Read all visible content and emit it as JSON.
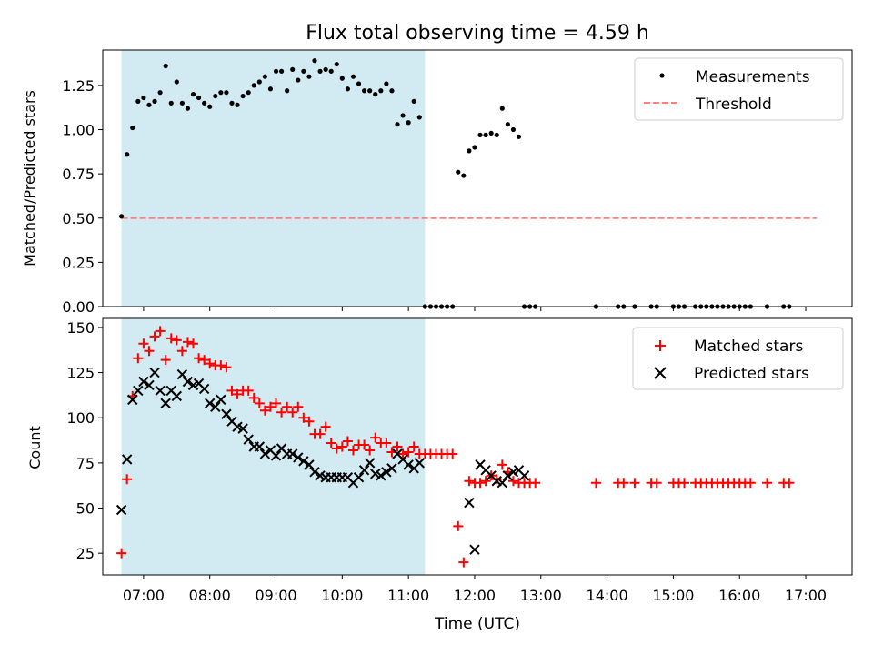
{
  "figure": {
    "title": "Flux total observing time = 4.59 h",
    "xlabel": "Time (UTC)"
  },
  "colors": {
    "shade": "#add8e6",
    "measurement": "#000000",
    "threshold": "#ff7f7f",
    "matched": "#ff0000",
    "predicted": "#000000"
  },
  "chart_data": [
    {
      "type": "scatter",
      "title": "Flux total observing time = 4.59 h",
      "xlabel": "",
      "ylabel": "Matched/Predicted stars",
      "xlim": [
        "06:23",
        "17:42"
      ],
      "ylim": [
        0,
        1.45
      ],
      "yticks": [
        0.0,
        0.25,
        0.5,
        0.75,
        1.0,
        1.25
      ],
      "ytick_labels": [
        "0.00",
        "0.25",
        "0.50",
        "0.75",
        "1.00",
        "1.25"
      ],
      "shaded_span": [
        "06:40",
        "11:15"
      ],
      "legend": [
        "Measurements",
        "Threshold"
      ],
      "legend_position": "upper right",
      "series": [
        {
          "name": "Measurements",
          "marker": "dot",
          "x": [
            "06:40",
            "06:45",
            "06:50",
            "06:55",
            "07:00",
            "07:05",
            "07:10",
            "07:15",
            "07:20",
            "07:25",
            "07:30",
            "07:35",
            "07:40",
            "07:45",
            "07:50",
            "07:55",
            "08:00",
            "08:05",
            "08:10",
            "08:15",
            "08:20",
            "08:25",
            "08:30",
            "08:35",
            "08:40",
            "08:45",
            "08:50",
            "08:55",
            "09:00",
            "09:05",
            "09:10",
            "09:15",
            "09:20",
            "09:25",
            "09:30",
            "09:35",
            "09:40",
            "09:45",
            "09:50",
            "09:55",
            "10:00",
            "10:05",
            "10:10",
            "10:15",
            "10:20",
            "10:25",
            "10:30",
            "10:35",
            "10:40",
            "10:45",
            "10:50",
            "10:55",
            "11:00",
            "11:05",
            "11:10",
            "11:15",
            "11:20",
            "11:25",
            "11:30",
            "11:35",
            "11:40",
            "11:45",
            "11:50",
            "11:55",
            "12:00",
            "12:05",
            "12:10",
            "12:15",
            "12:20",
            "12:25",
            "12:30",
            "12:35",
            "12:40",
            "12:45",
            "12:50",
            "12:55",
            "13:50",
            "14:10",
            "14:15",
            "14:25",
            "14:40",
            "14:45",
            "15:00",
            "15:05",
            "15:10",
            "15:20",
            "15:25",
            "15:30",
            "15:35",
            "15:40",
            "15:45",
            "15:50",
            "15:55",
            "16:00",
            "16:05",
            "16:10",
            "16:25",
            "16:40",
            "16:45"
          ],
          "y": [
            0.51,
            0.86,
            1.01,
            1.16,
            1.18,
            1.14,
            1.16,
            1.21,
            1.36,
            1.15,
            1.27,
            1.15,
            1.12,
            1.2,
            1.18,
            1.15,
            1.13,
            1.19,
            1.21,
            1.21,
            1.15,
            1.14,
            1.19,
            1.21,
            1.25,
            1.27,
            1.3,
            1.23,
            1.33,
            1.33,
            1.22,
            1.34,
            1.28,
            1.33,
            1.3,
            1.39,
            1.33,
            1.34,
            1.33,
            1.37,
            1.29,
            1.23,
            1.3,
            1.26,
            1.22,
            1.22,
            1.2,
            1.22,
            1.26,
            1.22,
            1.03,
            1.08,
            1.04,
            1.16,
            1.07,
            0,
            0,
            0,
            0,
            0,
            0,
            0.76,
            0.74,
            0.88,
            0.9,
            0.97,
            0.97,
            0.98,
            0.97,
            1.12,
            1.03,
            1.0,
            0.96,
            0,
            0,
            0,
            0,
            0,
            0,
            0,
            0,
            0,
            0,
            0,
            0,
            0,
            0,
            0,
            0,
            0,
            0,
            0,
            0,
            0,
            0,
            0,
            0,
            0,
            0
          ]
        },
        {
          "name": "Threshold",
          "style": "dashed",
          "x": [
            "06:40",
            "17:10"
          ],
          "y": [
            0.5,
            0.5
          ]
        }
      ]
    },
    {
      "type": "scatter",
      "xlabel": "Time (UTC)",
      "ylabel": "Count",
      "xlim": [
        "06:23",
        "17:42"
      ],
      "ylim": [
        13,
        155
      ],
      "yticks": [
        25,
        50,
        75,
        100,
        125,
        150
      ],
      "ytick_labels": [
        "25",
        "50",
        "75",
        "100",
        "125",
        "150"
      ],
      "xticks": [
        "07:00",
        "08:00",
        "09:00",
        "10:00",
        "11:00",
        "12:00",
        "13:00",
        "14:00",
        "15:00",
        "16:00",
        "17:00"
      ],
      "shaded_span": [
        "06:40",
        "11:15"
      ],
      "legend": [
        "Matched stars",
        "Predicted stars"
      ],
      "legend_position": "upper right",
      "series": [
        {
          "name": "Matched stars",
          "marker": "plus",
          "x": [
            "06:40",
            "06:45",
            "06:50",
            "06:55",
            "07:00",
            "07:05",
            "07:10",
            "07:15",
            "07:20",
            "07:25",
            "07:30",
            "07:35",
            "07:40",
            "07:45",
            "07:50",
            "07:55",
            "08:00",
            "08:05",
            "08:10",
            "08:15",
            "08:20",
            "08:25",
            "08:30",
            "08:35",
            "08:40",
            "08:45",
            "08:50",
            "08:55",
            "09:00",
            "09:05",
            "09:10",
            "09:15",
            "09:20",
            "09:25",
            "09:30",
            "09:35",
            "09:40",
            "09:45",
            "09:50",
            "09:55",
            "10:00",
            "10:05",
            "10:10",
            "10:15",
            "10:20",
            "10:25",
            "10:30",
            "10:35",
            "10:40",
            "10:45",
            "10:50",
            "10:55",
            "11:00",
            "11:05",
            "11:10",
            "11:15",
            "11:20",
            "11:25",
            "11:30",
            "11:35",
            "11:40",
            "11:45",
            "11:50",
            "11:55",
            "12:00",
            "12:05",
            "12:10",
            "12:15",
            "12:20",
            "12:25",
            "12:30",
            "12:35",
            "12:40",
            "12:45",
            "12:50",
            "12:55",
            "13:50",
            "14:10",
            "14:15",
            "14:25",
            "14:40",
            "14:45",
            "15:00",
            "15:05",
            "15:10",
            "15:20",
            "15:25",
            "15:30",
            "15:35",
            "15:40",
            "15:45",
            "15:50",
            "15:55",
            "16:00",
            "16:05",
            "16:10",
            "16:25",
            "16:40",
            "16:45"
          ],
          "y": [
            25,
            66,
            112,
            133,
            141,
            137,
            145,
            148,
            132,
            144,
            143,
            137,
            142,
            141,
            133,
            132,
            130,
            129,
            129,
            128,
            115,
            113,
            115,
            115,
            111,
            108,
            104,
            106,
            108,
            103,
            106,
            103,
            106,
            100,
            98,
            91,
            91,
            95,
            86,
            83,
            84,
            87,
            82,
            85,
            85,
            82,
            89,
            86,
            86,
            81,
            84,
            80,
            81,
            84,
            80,
            80,
            80,
            80,
            80,
            80,
            80,
            40,
            20,
            65,
            64,
            64,
            65,
            68,
            66,
            74,
            70,
            65,
            64,
            64,
            64,
            64,
            64,
            64,
            64,
            64,
            64,
            64,
            64,
            64,
            64,
            64,
            64,
            64,
            64,
            64,
            64,
            64,
            64,
            64,
            64,
            64,
            64,
            64,
            64
          ]
        },
        {
          "name": "Predicted stars",
          "marker": "x",
          "x": [
            "06:40",
            "06:45",
            "06:50",
            "06:55",
            "07:00",
            "07:05",
            "07:10",
            "07:15",
            "07:20",
            "07:25",
            "07:30",
            "07:35",
            "07:40",
            "07:45",
            "07:50",
            "07:55",
            "08:00",
            "08:05",
            "08:10",
            "08:15",
            "08:20",
            "08:25",
            "08:30",
            "08:35",
            "08:40",
            "08:45",
            "08:50",
            "08:55",
            "09:00",
            "09:05",
            "09:10",
            "09:15",
            "09:20",
            "09:25",
            "09:30",
            "09:35",
            "09:40",
            "09:45",
            "09:50",
            "09:55",
            "10:00",
            "10:05",
            "10:10",
            "10:15",
            "10:20",
            "10:25",
            "10:30",
            "10:35",
            "10:40",
            "10:45",
            "10:50",
            "10:55",
            "11:00",
            "11:05",
            "11:10",
            "11:55",
            "12:00",
            "12:05",
            "12:10",
            "12:15",
            "12:20",
            "12:25",
            "12:30",
            "12:35",
            "12:40",
            "12:45"
          ],
          "y": [
            49,
            77,
            110,
            115,
            120,
            118,
            125,
            115,
            108,
            115,
            112,
            124,
            120,
            118,
            119,
            116,
            108,
            106,
            110,
            102,
            98,
            95,
            94,
            88,
            84,
            84,
            80,
            82,
            79,
            83,
            80,
            80,
            78,
            76,
            74,
            70,
            68,
            67,
            67,
            67,
            67,
            67,
            64,
            67,
            71,
            75,
            69,
            68,
            70,
            72,
            80,
            77,
            74,
            72,
            75,
            53,
            27,
            74,
            71,
            68,
            65,
            64,
            68,
            70,
            71,
            68
          ]
        }
      ]
    }
  ]
}
